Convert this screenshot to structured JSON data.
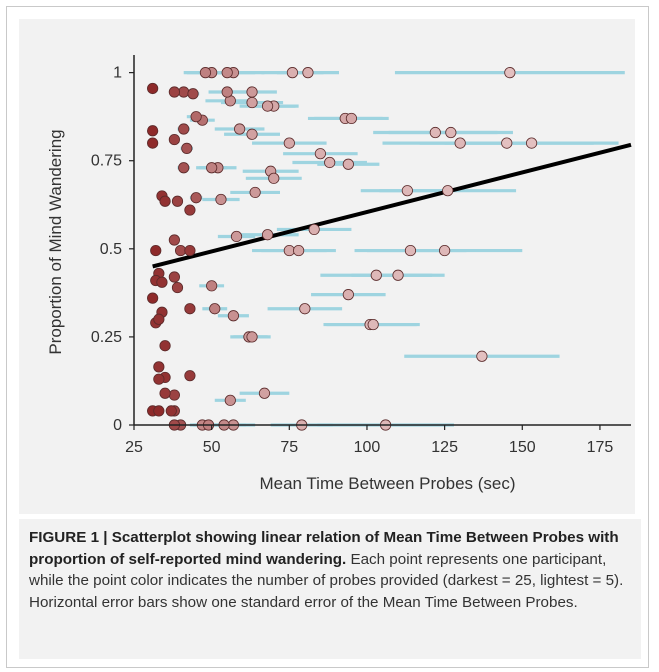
{
  "colors": {
    "errorbar": "#9ed4e0",
    "fit_line": "#000000",
    "panel_bg": "#f2f2f2",
    "point_darkest": "#8e2a2a",
    "point_lightest": "#e7c8c8"
  },
  "chart_data": {
    "type": "scatter",
    "xlabel": "Mean Time Between Probes (sec)",
    "ylabel": "Proportion  of Mind Wandering",
    "x_ticks": [
      25,
      50,
      75,
      100,
      125,
      150,
      175
    ],
    "y_ticks": [
      0,
      0.25,
      0.5,
      0.75,
      1
    ],
    "y_tick_labels": [
      "0",
      "0.25",
      "0.5",
      "0.75",
      "1"
    ],
    "xlim": [
      25,
      185
    ],
    "ylim": [
      0,
      1.05
    ],
    "grid": false,
    "legend": "none",
    "fit_line": {
      "x": [
        31,
        185
      ],
      "y": [
        0.45,
        0.795
      ]
    },
    "points": [
      {
        "x": 31,
        "y": 0.955,
        "shade": 1.0,
        "err": 0
      },
      {
        "x": 31,
        "y": 0.835,
        "shade": 1.0,
        "err": 0
      },
      {
        "x": 31,
        "y": 0.8,
        "shade": 1.0,
        "err": 0
      },
      {
        "x": 34,
        "y": 0.65,
        "shade": 0.95,
        "err": 0
      },
      {
        "x": 35,
        "y": 0.635,
        "shade": 0.95,
        "err": 0
      },
      {
        "x": 32,
        "y": 0.495,
        "shade": 1.0,
        "err": 0
      },
      {
        "x": 33,
        "y": 0.43,
        "shade": 0.95,
        "err": 0
      },
      {
        "x": 32,
        "y": 0.41,
        "shade": 0.95,
        "err": 0
      },
      {
        "x": 34,
        "y": 0.405,
        "shade": 0.95,
        "err": 0
      },
      {
        "x": 31,
        "y": 0.36,
        "shade": 1.0,
        "err": 0
      },
      {
        "x": 34,
        "y": 0.32,
        "shade": 0.95,
        "err": 0
      },
      {
        "x": 32,
        "y": 0.29,
        "shade": 0.95,
        "err": 0
      },
      {
        "x": 33,
        "y": 0.3,
        "shade": 0.95,
        "err": 0
      },
      {
        "x": 35,
        "y": 0.225,
        "shade": 0.95,
        "err": 0
      },
      {
        "x": 33,
        "y": 0.165,
        "shade": 0.95,
        "err": 0
      },
      {
        "x": 35,
        "y": 0.135,
        "shade": 0.95,
        "err": 0
      },
      {
        "x": 33,
        "y": 0.13,
        "shade": 0.95,
        "err": 0
      },
      {
        "x": 35,
        "y": 0.09,
        "shade": 0.9,
        "err": 0
      },
      {
        "x": 31,
        "y": 0.04,
        "shade": 1.0,
        "err": 0
      },
      {
        "x": 33,
        "y": 0.04,
        "shade": 1.0,
        "err": 0
      },
      {
        "x": 37,
        "y": 0.04,
        "shade": 0.95,
        "err": 0
      },
      {
        "x": 38,
        "y": 0.945,
        "shade": 0.85,
        "err": 0
      },
      {
        "x": 41,
        "y": 0.945,
        "shade": 0.8,
        "err": 0
      },
      {
        "x": 44,
        "y": 0.94,
        "shade": 0.8,
        "err": 2
      },
      {
        "x": 41,
        "y": 0.84,
        "shade": 0.8,
        "err": 2
      },
      {
        "x": 38,
        "y": 0.81,
        "shade": 0.85,
        "err": 0
      },
      {
        "x": 42,
        "y": 0.785,
        "shade": 0.75,
        "err": 2
      },
      {
        "x": 41,
        "y": 0.73,
        "shade": 0.75,
        "err": 2
      },
      {
        "x": 39,
        "y": 0.635,
        "shade": 0.85,
        "err": 0
      },
      {
        "x": 43,
        "y": 0.61,
        "shade": 0.9,
        "err": 0
      },
      {
        "x": 45,
        "y": 0.645,
        "shade": 0.7,
        "err": 2
      },
      {
        "x": 38,
        "y": 0.525,
        "shade": 0.8,
        "err": 0
      },
      {
        "x": 40,
        "y": 0.495,
        "shade": 0.8,
        "err": 0
      },
      {
        "x": 43,
        "y": 0.495,
        "shade": 0.9,
        "err": 0
      },
      {
        "x": 38,
        "y": 0.42,
        "shade": 0.85,
        "err": 0
      },
      {
        "x": 39,
        "y": 0.39,
        "shade": 0.85,
        "err": 0
      },
      {
        "x": 43,
        "y": 0.33,
        "shade": 0.9,
        "err": 0
      },
      {
        "x": 43,
        "y": 0.14,
        "shade": 0.9,
        "err": 0
      },
      {
        "x": 38,
        "y": 0.085,
        "shade": 0.85,
        "err": 0
      },
      {
        "x": 38,
        "y": 0.04,
        "shade": 0.85,
        "err": 0
      },
      {
        "x": 38,
        "y": 0.0,
        "shade": 0.8,
        "err": 0
      },
      {
        "x": 40,
        "y": 0.0,
        "shade": 0.75,
        "err": 0
      },
      {
        "x": 45,
        "y": 0.875,
        "shade": 0.6,
        "err": 3
      },
      {
        "x": 47,
        "y": 0.865,
        "shade": 0.55,
        "err": 4
      },
      {
        "x": 48,
        "y": 1.0,
        "shade": 0.45,
        "err": 7
      },
      {
        "x": 50,
        "y": 1.0,
        "shade": 0.4,
        "err": 8
      },
      {
        "x": 55,
        "y": 1.0,
        "shade": 0.4,
        "err": 9
      },
      {
        "x": 57,
        "y": 1.0,
        "shade": 0.35,
        "err": 10
      },
      {
        "x": 55,
        "y": 0.945,
        "shade": 0.45,
        "err": 6
      },
      {
        "x": 63,
        "y": 0.945,
        "shade": 0.3,
        "err": 8
      },
      {
        "x": 56,
        "y": 0.92,
        "shade": 0.35,
        "err": 8
      },
      {
        "x": 63,
        "y": 0.915,
        "shade": 0.25,
        "err": 10
      },
      {
        "x": 68,
        "y": 0.905,
        "shade": 0.25,
        "err": 9
      },
      {
        "x": 70,
        "y": 0.905,
        "shade": 0.2,
        "err": 8
      },
      {
        "x": 76,
        "y": 1.0,
        "shade": 0.15,
        "err": 10
      },
      {
        "x": 81,
        "y": 1.0,
        "shade": 0.15,
        "err": 10
      },
      {
        "x": 146,
        "y": 1.0,
        "shade": 0.05,
        "err": 37
      },
      {
        "x": 93,
        "y": 0.87,
        "shade": 0.2,
        "err": 12
      },
      {
        "x": 95,
        "y": 0.87,
        "shade": 0.2,
        "err": 12
      },
      {
        "x": 59,
        "y": 0.84,
        "shade": 0.3,
        "err": 8
      },
      {
        "x": 63,
        "y": 0.825,
        "shade": 0.25,
        "err": 9
      },
      {
        "x": 75,
        "y": 0.8,
        "shade": 0.2,
        "err": 12
      },
      {
        "x": 85,
        "y": 0.77,
        "shade": 0.15,
        "err": 12
      },
      {
        "x": 88,
        "y": 0.745,
        "shade": 0.15,
        "err": 12
      },
      {
        "x": 94,
        "y": 0.74,
        "shade": 0.15,
        "err": 10
      },
      {
        "x": 122,
        "y": 0.83,
        "shade": 0.1,
        "err": 20
      },
      {
        "x": 127,
        "y": 0.83,
        "shade": 0.1,
        "err": 20
      },
      {
        "x": 130,
        "y": 0.8,
        "shade": 0.1,
        "err": 25
      },
      {
        "x": 145,
        "y": 0.8,
        "shade": 0.05,
        "err": 28
      },
      {
        "x": 153,
        "y": 0.8,
        "shade": 0.05,
        "err": 28
      },
      {
        "x": 50,
        "y": 0.73,
        "shade": 0.45,
        "err": 5
      },
      {
        "x": 52,
        "y": 0.73,
        "shade": 0.4,
        "err": 6
      },
      {
        "x": 69,
        "y": 0.72,
        "shade": 0.25,
        "err": 9
      },
      {
        "x": 70,
        "y": 0.7,
        "shade": 0.25,
        "err": 9
      },
      {
        "x": 64,
        "y": 0.66,
        "shade": 0.3,
        "err": 8
      },
      {
        "x": 53,
        "y": 0.64,
        "shade": 0.35,
        "err": 6
      },
      {
        "x": 113,
        "y": 0.665,
        "shade": 0.1,
        "err": 15
      },
      {
        "x": 126,
        "y": 0.665,
        "shade": 0.1,
        "err": 22
      },
      {
        "x": 58,
        "y": 0.535,
        "shade": 0.3,
        "err": 6
      },
      {
        "x": 68,
        "y": 0.54,
        "shade": 0.25,
        "err": 10
      },
      {
        "x": 83,
        "y": 0.555,
        "shade": 0.15,
        "err": 12
      },
      {
        "x": 75,
        "y": 0.495,
        "shade": 0.2,
        "err": 12
      },
      {
        "x": 78,
        "y": 0.495,
        "shade": 0.2,
        "err": 12
      },
      {
        "x": 114,
        "y": 0.495,
        "shade": 0.1,
        "err": 18
      },
      {
        "x": 125,
        "y": 0.495,
        "shade": 0.1,
        "err": 25
      },
      {
        "x": 103,
        "y": 0.425,
        "shade": 0.1,
        "err": 18
      },
      {
        "x": 110,
        "y": 0.425,
        "shade": 0.1,
        "err": 15
      },
      {
        "x": 94,
        "y": 0.37,
        "shade": 0.15,
        "err": 12
      },
      {
        "x": 50,
        "y": 0.395,
        "shade": 0.45,
        "err": 4
      },
      {
        "x": 51,
        "y": 0.33,
        "shade": 0.45,
        "err": 4
      },
      {
        "x": 57,
        "y": 0.31,
        "shade": 0.35,
        "err": 5
      },
      {
        "x": 80,
        "y": 0.33,
        "shade": 0.15,
        "err": 12
      },
      {
        "x": 101,
        "y": 0.285,
        "shade": 0.1,
        "err": 15
      },
      {
        "x": 102,
        "y": 0.285,
        "shade": 0.1,
        "err": 15
      },
      {
        "x": 62,
        "y": 0.25,
        "shade": 0.3,
        "err": 6
      },
      {
        "x": 63,
        "y": 0.25,
        "shade": 0.3,
        "err": 6
      },
      {
        "x": 137,
        "y": 0.195,
        "shade": 0.05,
        "err": 25
      },
      {
        "x": 67,
        "y": 0.09,
        "shade": 0.25,
        "err": 8
      },
      {
        "x": 56,
        "y": 0.07,
        "shade": 0.35,
        "err": 5
      },
      {
        "x": 47,
        "y": 0.0,
        "shade": 0.4,
        "err": 3
      },
      {
        "x": 49,
        "y": 0.0,
        "shade": 0.45,
        "err": 6
      },
      {
        "x": 54,
        "y": 0.0,
        "shade": 0.4,
        "err": 7
      },
      {
        "x": 57,
        "y": 0.0,
        "shade": 0.35,
        "err": 7
      },
      {
        "x": 79,
        "y": 0.0,
        "shade": 0.15,
        "err": 10
      },
      {
        "x": 106,
        "y": 0.0,
        "shade": 0.1,
        "err": 22
      }
    ]
  },
  "caption": {
    "title": "FIGURE 1 | Scatterplot showing linear relation of Mean Time Between Probes with proportion of self-reported mind wandering.",
    "body": " Each point represents one participant, while the point color indicates the number of probes provided (darkest = 25, lightest = 5). Horizontal error bars show one standard error of the Mean Time Between Probes."
  }
}
